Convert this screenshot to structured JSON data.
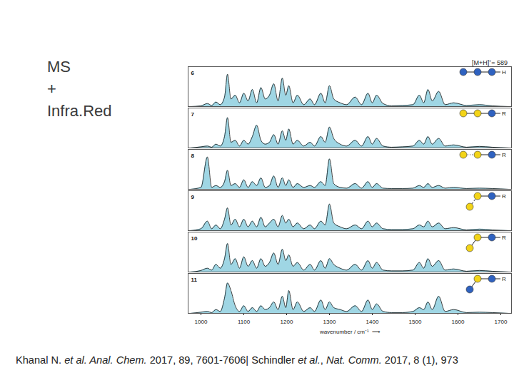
{
  "slide": {
    "heading_lines": [
      "MS",
      "+",
      "Infra.Red"
    ],
    "citation": [
      {
        "text": "Khanal N. ",
        "italic": false
      },
      {
        "text": "et al. Anal. Chem.",
        "italic": true
      },
      {
        "text": " 2017, 89, 7601-7606| Schindler ",
        "italic": false
      },
      {
        "text": "et al.",
        "italic": true
      },
      {
        "text": ", ",
        "italic": false
      },
      {
        "text": "Nat. Comm.",
        "italic": true
      },
      {
        "text": " 2017, 8 (1), 973",
        "italic": false
      }
    ]
  },
  "chart_data": [
    {
      "type": "area",
      "title": "6",
      "annotations": [
        "[M+H]⁺= 589",
        "H"
      ],
      "color": "#9fd6e4",
      "xlim": [
        970,
        1725
      ],
      "ylim": [
        0,
        1.05
      ],
      "tick_labels": false,
      "x": [
        975,
        1000,
        1015,
        1025,
        1035,
        1045,
        1055,
        1062,
        1070,
        1080,
        1090,
        1100,
        1110,
        1120,
        1130,
        1140,
        1150,
        1160,
        1170,
        1180,
        1190,
        1198,
        1205,
        1215,
        1225,
        1240,
        1255,
        1265,
        1280,
        1290,
        1300,
        1310,
        1325,
        1340,
        1360,
        1375,
        1390,
        1400,
        1410,
        1425,
        1445,
        1470,
        1495,
        1510,
        1520,
        1530,
        1540,
        1555,
        1570,
        1590,
        1620,
        1650,
        1680,
        1720
      ],
      "values": [
        0,
        0.02,
        0.08,
        0.03,
        0.12,
        0.05,
        0.25,
        0.85,
        0.2,
        0.3,
        0.1,
        0.35,
        0.15,
        0.45,
        0.1,
        0.5,
        0.2,
        0.3,
        0.6,
        0.15,
        0.75,
        0.3,
        0.55,
        0.1,
        0.3,
        0.05,
        0.2,
        0.05,
        0.35,
        0.1,
        0.55,
        0.2,
        0.1,
        0.05,
        0.25,
        0.05,
        0.35,
        0.1,
        0.3,
        0.08,
        0.02,
        0.03,
        0.05,
        0.3,
        0.1,
        0.45,
        0.15,
        0.4,
        0.05,
        0.1,
        0.03,
        0.05,
        0.02,
        0
      ]
    },
    {
      "type": "area",
      "title": "7",
      "annotations": [
        "R"
      ],
      "color": "#9fd6e4",
      "xlim": [
        970,
        1725
      ],
      "ylim": [
        0,
        1.05
      ],
      "tick_labels": false,
      "x": [
        975,
        1000,
        1015,
        1025,
        1035,
        1045,
        1055,
        1062,
        1070,
        1080,
        1090,
        1100,
        1110,
        1120,
        1130,
        1140,
        1150,
        1160,
        1170,
        1180,
        1190,
        1198,
        1205,
        1215,
        1225,
        1240,
        1255,
        1265,
        1280,
        1290,
        1300,
        1310,
        1325,
        1340,
        1360,
        1375,
        1390,
        1400,
        1410,
        1425,
        1445,
        1470,
        1495,
        1510,
        1520,
        1530,
        1540,
        1555,
        1570,
        1590,
        1620,
        1650,
        1680,
        1720
      ],
      "values": [
        0,
        0.03,
        0.05,
        0.02,
        0.1,
        0.05,
        0.3,
        0.8,
        0.15,
        0.2,
        0.05,
        0.2,
        0.1,
        0.3,
        0.6,
        0.2,
        0.1,
        0.15,
        0.35,
        0.1,
        0.45,
        0.2,
        0.5,
        0.1,
        0.2,
        0.05,
        0.15,
        0.05,
        0.3,
        0.15,
        0.55,
        0.25,
        0.1,
        0.05,
        0.2,
        0.05,
        0.3,
        0.1,
        0.25,
        0.05,
        0.02,
        0.03,
        0.05,
        0.2,
        0.1,
        0.3,
        0.1,
        0.25,
        0.05,
        0.08,
        0.02,
        0.04,
        0.02,
        0
      ]
    },
    {
      "type": "area",
      "title": "8",
      "annotations": [
        "R"
      ],
      "color": "#9fd6e4",
      "xlim": [
        970,
        1725
      ],
      "ylim": [
        0,
        1.05
      ],
      "tick_labels": false,
      "x": [
        975,
        1000,
        1015,
        1025,
        1035,
        1045,
        1055,
        1062,
        1070,
        1080,
        1090,
        1100,
        1110,
        1120,
        1130,
        1140,
        1150,
        1160,
        1170,
        1180,
        1190,
        1198,
        1205,
        1215,
        1225,
        1240,
        1255,
        1265,
        1280,
        1290,
        1300,
        1310,
        1325,
        1340,
        1360,
        1375,
        1390,
        1400,
        1410,
        1425,
        1445,
        1470,
        1495,
        1510,
        1520,
        1530,
        1540,
        1555,
        1570,
        1590,
        1620,
        1650,
        1680,
        1720
      ],
      "values": [
        0,
        0.05,
        0.85,
        0.05,
        0.1,
        0.05,
        0.2,
        0.5,
        0.1,
        0.15,
        0.05,
        0.25,
        0.05,
        0.2,
        0.1,
        0.3,
        0.05,
        0.1,
        0.35,
        0.05,
        0.3,
        0.1,
        0.25,
        0.05,
        0.15,
        0.05,
        0.1,
        0.05,
        0.2,
        0.1,
        0.8,
        0.15,
        0.05,
        0.03,
        0.15,
        0.03,
        0.2,
        0.05,
        0.15,
        0.03,
        0.02,
        0.02,
        0.03,
        0.1,
        0.05,
        0.15,
        0.05,
        0.1,
        0.03,
        0.05,
        0.02,
        0.03,
        0.02,
        0
      ]
    },
    {
      "type": "area",
      "title": "9",
      "annotations": [
        "R"
      ],
      "color": "#9fd6e4",
      "xlim": [
        970,
        1725
      ],
      "ylim": [
        0,
        1.05
      ],
      "tick_labels": false,
      "x": [
        975,
        1000,
        1015,
        1025,
        1035,
        1045,
        1055,
        1062,
        1070,
        1080,
        1090,
        1100,
        1110,
        1120,
        1130,
        1140,
        1150,
        1160,
        1170,
        1180,
        1190,
        1198,
        1205,
        1215,
        1225,
        1240,
        1255,
        1265,
        1280,
        1290,
        1300,
        1310,
        1325,
        1340,
        1360,
        1375,
        1390,
        1400,
        1410,
        1425,
        1445,
        1470,
        1495,
        1510,
        1520,
        1530,
        1540,
        1555,
        1570,
        1590,
        1620,
        1650,
        1680,
        1720
      ],
      "values": [
        0,
        0.05,
        0.25,
        0.05,
        0.15,
        0.05,
        0.3,
        0.6,
        0.15,
        0.3,
        0.1,
        0.3,
        0.1,
        0.25,
        0.1,
        0.35,
        0.1,
        0.2,
        0.3,
        0.1,
        0.4,
        0.2,
        0.3,
        0.1,
        0.2,
        0.05,
        0.15,
        0.05,
        0.25,
        0.15,
        0.7,
        0.2,
        0.1,
        0.05,
        0.15,
        0.05,
        0.25,
        0.1,
        0.2,
        0.05,
        0.03,
        0.03,
        0.05,
        0.15,
        0.1,
        0.25,
        0.1,
        0.2,
        0.05,
        0.08,
        0.02,
        0.04,
        0.02,
        0
      ]
    },
    {
      "type": "area",
      "title": "10",
      "annotations": [
        "R"
      ],
      "color": "#9fd6e4",
      "xlim": [
        970,
        1725
      ],
      "ylim": [
        0,
        1.05
      ],
      "tick_labels": false,
      "x": [
        975,
        1000,
        1015,
        1025,
        1035,
        1045,
        1055,
        1062,
        1070,
        1080,
        1090,
        1100,
        1110,
        1120,
        1130,
        1140,
        1150,
        1160,
        1170,
        1180,
        1190,
        1198,
        1205,
        1215,
        1225,
        1240,
        1255,
        1265,
        1280,
        1290,
        1300,
        1310,
        1325,
        1340,
        1360,
        1375,
        1390,
        1400,
        1410,
        1425,
        1445,
        1470,
        1495,
        1510,
        1520,
        1530,
        1540,
        1555,
        1570,
        1590,
        1620,
        1650,
        1680,
        1720
      ],
      "values": [
        0,
        0.04,
        0.1,
        0.05,
        0.2,
        0.1,
        0.35,
        0.75,
        0.2,
        0.35,
        0.1,
        0.4,
        0.15,
        0.3,
        0.1,
        0.35,
        0.15,
        0.25,
        0.5,
        0.2,
        0.6,
        0.3,
        0.45,
        0.15,
        0.25,
        0.05,
        0.2,
        0.05,
        0.3,
        0.1,
        0.35,
        0.2,
        0.1,
        0.05,
        0.2,
        0.05,
        0.3,
        0.1,
        0.25,
        0.05,
        0.03,
        0.03,
        0.05,
        0.25,
        0.1,
        0.35,
        0.15,
        0.3,
        0.05,
        0.08,
        0.02,
        0.04,
        0.02,
        0
      ]
    },
    {
      "type": "area",
      "title": "11",
      "annotations": [
        "R"
      ],
      "color": "#9fd6e4",
      "xlim": [
        970,
        1725
      ],
      "ylim": [
        0,
        1.05
      ],
      "tick_labels": "x",
      "xlabel": "wavenumber / cm⁻¹  ⟶",
      "xticks": [
        1000,
        1100,
        1200,
        1300,
        1400,
        1500,
        1600,
        1700
      ],
      "x": [
        975,
        1000,
        1015,
        1025,
        1035,
        1045,
        1055,
        1062,
        1070,
        1080,
        1090,
        1100,
        1110,
        1120,
        1130,
        1140,
        1150,
        1160,
        1170,
        1180,
        1190,
        1198,
        1205,
        1215,
        1225,
        1240,
        1255,
        1265,
        1280,
        1290,
        1300,
        1310,
        1325,
        1340,
        1360,
        1375,
        1390,
        1400,
        1410,
        1425,
        1445,
        1470,
        1495,
        1510,
        1520,
        1530,
        1540,
        1555,
        1570,
        1590,
        1620,
        1650,
        1680,
        1720
      ],
      "values": [
        0,
        0.03,
        0.05,
        0.02,
        0.1,
        0.05,
        0.4,
        0.8,
        0.6,
        0.2,
        0.05,
        0.2,
        0.05,
        0.15,
        0.05,
        0.2,
        0.1,
        0.15,
        0.3,
        0.1,
        0.45,
        0.15,
        0.6,
        0.1,
        0.3,
        0.05,
        0.15,
        0.05,
        0.35,
        0.1,
        0.3,
        0.15,
        0.1,
        0.05,
        0.2,
        0.05,
        0.35,
        0.1,
        0.25,
        0.05,
        0.02,
        0.02,
        0.05,
        0.15,
        0.1,
        0.3,
        0.1,
        0.45,
        0.05,
        0.1,
        0.02,
        0.03,
        0.02,
        0
      ]
    }
  ]
}
